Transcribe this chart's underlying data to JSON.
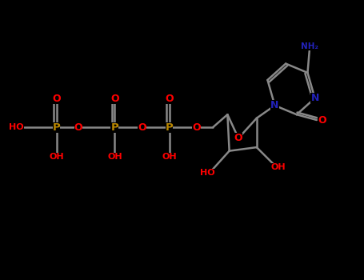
{
  "background_color": "#000000",
  "N_color": "#2222bb",
  "O_color": "#ff0000",
  "P_color": "#bb8800",
  "C_color": "#888888",
  "bond_color": "#888888",
  "fig_width": 4.55,
  "fig_height": 3.5,
  "dpi": 100,
  "xlim": [
    0,
    10
  ],
  "ylim": [
    0,
    7.7
  ]
}
